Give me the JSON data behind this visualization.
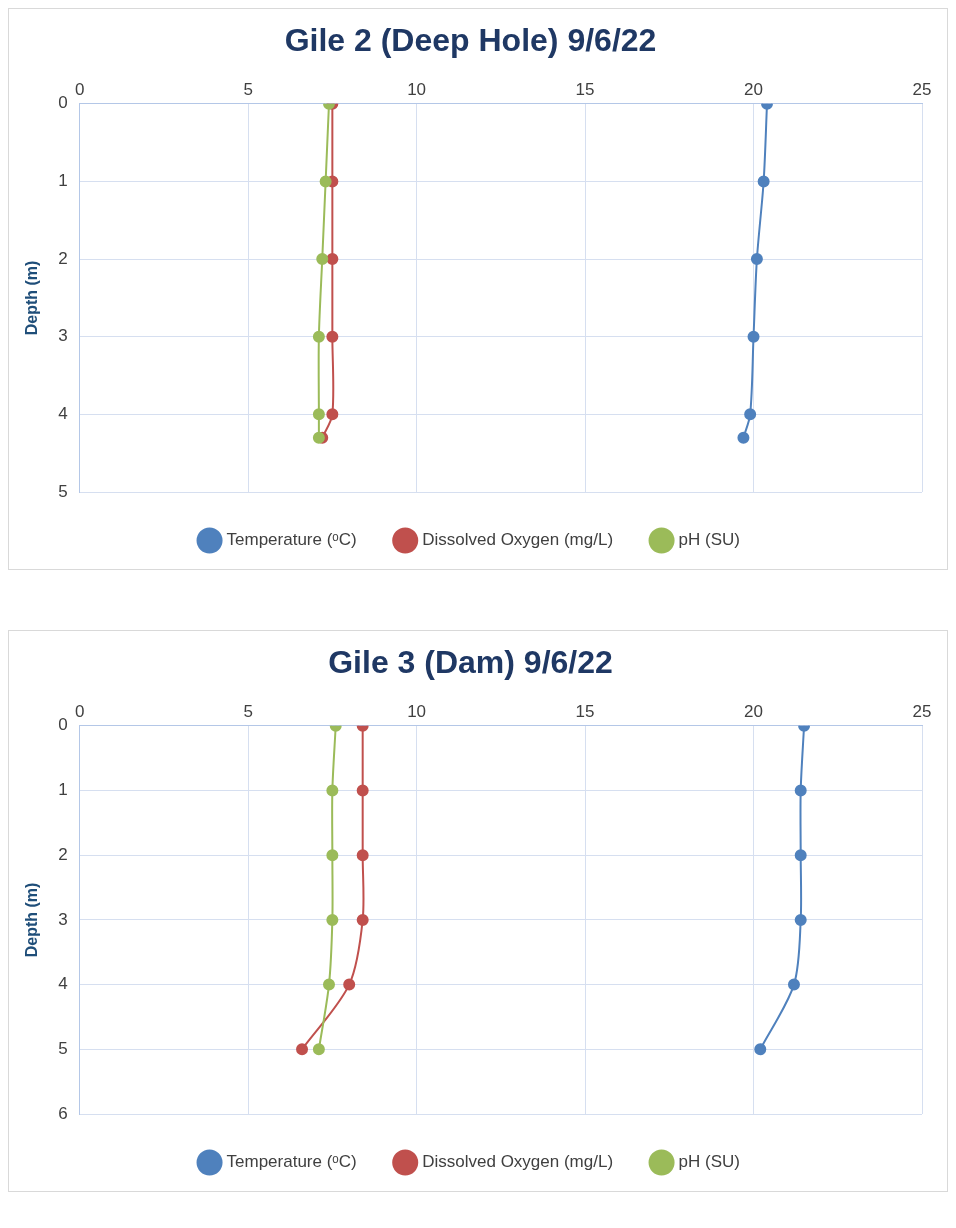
{
  "chart_data": [
    {
      "type": "line",
      "title": "Gile 2 (Deep Hole) 9/6/22",
      "ylabel": "Depth (m)",
      "xlim": [
        0,
        25
      ],
      "xticks": [
        0,
        5,
        10,
        15,
        20,
        25
      ],
      "ylim": [
        5,
        0
      ],
      "yticks": [
        0,
        1,
        2,
        3,
        4,
        5
      ],
      "grid": true,
      "legend": "bottom",
      "marker": "circle",
      "series": [
        {
          "name": "Temperature (ᵒC)",
          "color": "#4f81bd",
          "x": [
            20.4,
            20.3,
            20.1,
            20.0,
            19.9,
            19.7
          ],
          "values": [
            0,
            1,
            2,
            3,
            4,
            4.3
          ]
        },
        {
          "name": "Dissolved Oxygen (mg/L)",
          "color": "#c0504d",
          "x": [
            7.5,
            7.5,
            7.5,
            7.5,
            7.5,
            7.2
          ],
          "values": [
            0,
            1,
            2,
            3,
            4,
            4.3
          ]
        },
        {
          "name": "pH (SU)",
          "color": "#9bbb59",
          "x": [
            7.4,
            7.3,
            7.2,
            7.1,
            7.1,
            7.1
          ],
          "values": [
            0,
            1,
            2,
            3,
            4,
            4.3
          ]
        }
      ]
    },
    {
      "type": "line",
      "title": "Gile 3 (Dam) 9/6/22",
      "ylabel": "Depth (m)",
      "xlim": [
        0,
        25
      ],
      "xticks": [
        0,
        5,
        10,
        15,
        20,
        25
      ],
      "ylim": [
        6,
        0
      ],
      "yticks": [
        0,
        1,
        2,
        3,
        4,
        5,
        6
      ],
      "grid": true,
      "legend": "bottom",
      "marker": "circle",
      "series": [
        {
          "name": "Temperature (ᵒC)",
          "color": "#4f81bd",
          "x": [
            21.5,
            21.4,
            21.4,
            21.4,
            21.2,
            20.2
          ],
          "values": [
            0,
            1,
            2,
            3,
            4,
            5
          ]
        },
        {
          "name": "Dissolved Oxygen (mg/L)",
          "color": "#c0504d",
          "x": [
            8.4,
            8.4,
            8.4,
            8.4,
            8.0,
            6.6
          ],
          "values": [
            0,
            1,
            2,
            3,
            4,
            5
          ]
        },
        {
          "name": "pH (SU)",
          "color": "#9bbb59",
          "x": [
            7.6,
            7.5,
            7.5,
            7.5,
            7.4,
            7.1
          ],
          "values": [
            0,
            1,
            2,
            3,
            4,
            5
          ]
        }
      ]
    }
  ]
}
